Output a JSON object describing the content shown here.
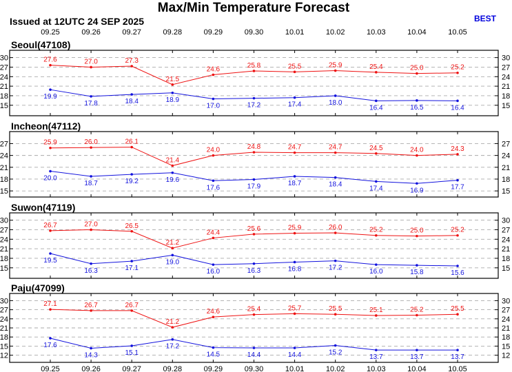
{
  "header": {
    "title": "Max/Min Temperature Forecast",
    "issued": "Issued at 12UTC 24 SEP 2025",
    "badge": "BEST"
  },
  "colors": {
    "max": "#ee1111",
    "min": "#1111dd",
    "grid": "#aaaaaa",
    "badge": "#0000dd"
  },
  "chart_data": [
    {
      "type": "line",
      "title": "Seoul(47108)",
      "categories": [
        "09.25",
        "09.26",
        "09.27",
        "09.28",
        "09.29",
        "09.30",
        "10.01",
        "10.02",
        "10.03",
        "10.04",
        "10.05"
      ],
      "ylim": [
        13,
        31
      ],
      "yticks": [
        15,
        18,
        21,
        24,
        27,
        30
      ],
      "series": [
        {
          "name": "max",
          "values": [
            27.6,
            27.0,
            27.3,
            21.5,
            24.6,
            25.8,
            25.5,
            25.9,
            25.4,
            25.0,
            25.2
          ]
        },
        {
          "name": "min",
          "values": [
            19.9,
            17.8,
            18.4,
            18.9,
            17.0,
            17.2,
            17.4,
            18.0,
            16.4,
            16.5,
            16.4
          ]
        }
      ]
    },
    {
      "type": "line",
      "title": "Incheon(47112)",
      "categories": [
        "09.25",
        "09.26",
        "09.27",
        "09.28",
        "09.29",
        "09.30",
        "10.01",
        "10.02",
        "10.03",
        "10.04",
        "10.05"
      ],
      "ylim": [
        14.5,
        29
      ],
      "yticks": [
        15,
        18,
        21,
        24,
        27
      ],
      "series": [
        {
          "name": "max",
          "values": [
            25.9,
            26.0,
            26.1,
            21.4,
            24.0,
            24.8,
            24.7,
            24.7,
            24.5,
            24.0,
            24.3
          ]
        },
        {
          "name": "min",
          "values": [
            20.0,
            18.7,
            19.2,
            19.6,
            17.6,
            17.9,
            18.7,
            18.4,
            17.4,
            16.9,
            17.7
          ]
        }
      ]
    },
    {
      "type": "line",
      "title": "Suwon(47119)",
      "categories": [
        "09.25",
        "09.26",
        "09.27",
        "09.28",
        "09.29",
        "09.30",
        "10.01",
        "10.02",
        "10.03",
        "10.04",
        "10.05"
      ],
      "ylim": [
        13,
        31
      ],
      "yticks": [
        15,
        18,
        21,
        24,
        27,
        30
      ],
      "series": [
        {
          "name": "max",
          "values": [
            26.7,
            27.0,
            26.5,
            21.2,
            24.4,
            25.6,
            25.9,
            26.0,
            25.2,
            25.0,
            25.2
          ]
        },
        {
          "name": "min",
          "values": [
            19.5,
            16.3,
            17.1,
            19.0,
            16.0,
            16.3,
            16.8,
            17.2,
            16.0,
            15.8,
            15.6
          ]
        }
      ]
    },
    {
      "type": "line",
      "title": "Paju(47099)",
      "categories": [
        "09.25",
        "09.26",
        "09.27",
        "09.28",
        "09.29",
        "09.30",
        "10.01",
        "10.02",
        "10.03",
        "10.04",
        "10.05"
      ],
      "ylim": [
        11,
        31
      ],
      "yticks": [
        12,
        15,
        18,
        21,
        24,
        27,
        30
      ],
      "series": [
        {
          "name": "max",
          "values": [
            27.1,
            26.7,
            26.7,
            21.2,
            24.6,
            25.4,
            25.7,
            25.5,
            25.1,
            25.2,
            25.5
          ]
        },
        {
          "name": "min",
          "values": [
            17.6,
            14.3,
            15.1,
            17.2,
            14.5,
            14.4,
            14.4,
            15.2,
            13.7,
            13.7,
            13.7
          ]
        }
      ]
    }
  ]
}
